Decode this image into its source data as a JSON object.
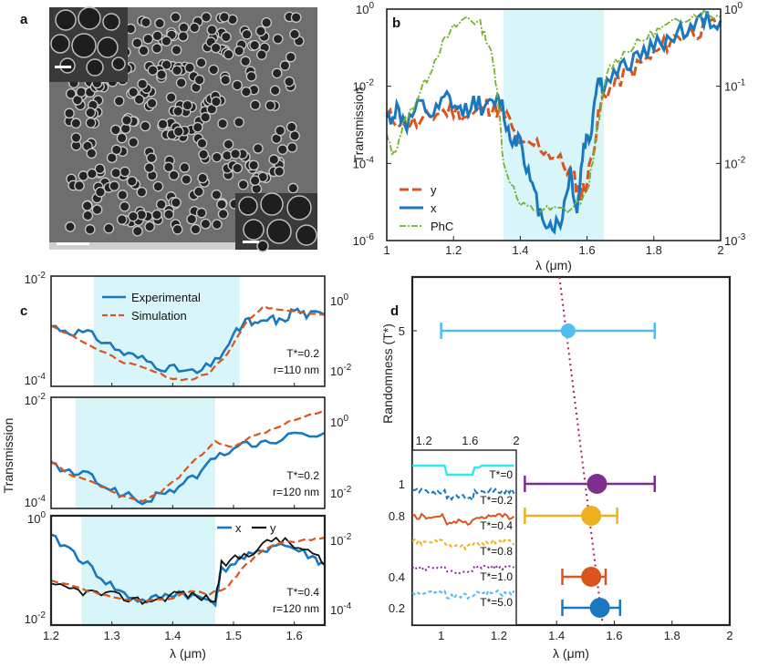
{
  "colors": {
    "blue": "#1878c0",
    "orange": "#d9541e",
    "green": "#78b02e",
    "cyan_band": "#d8f6fa",
    "purple": "#7e2f8e",
    "yellow": "#edb120",
    "lightblue": "#4dbeee",
    "cyan": "#2fe8f0",
    "sem_dark": "#2a2a2a",
    "sem_mid": "#9a9a9a"
  },
  "chart_data": [
    {
      "id": "a",
      "type": "image",
      "panel_label": "a",
      "description_hidden": true
    },
    {
      "id": "b",
      "type": "line",
      "panel_label": "b",
      "xlabel": "λ (μm)",
      "ylabel": "Transmission",
      "xlim": [
        1,
        2
      ],
      "xticks": [
        "1",
        "1.2",
        "1.4",
        "1.6",
        "1.8",
        "2"
      ],
      "yticks_left": [
        "10",
        "10",
        "10",
        "10"
      ],
      "yticks_left_exp": [
        "0",
        "-2",
        "-4",
        "-6"
      ],
      "yticks_right": [
        "10",
        "10",
        "10",
        "10"
      ],
      "yticks_right_exp": [
        "0",
        "-1",
        "-2",
        "-3"
      ],
      "band": [
        1.35,
        1.65
      ],
      "legend": [
        "y",
        "x",
        "PhC"
      ],
      "series": [
        {
          "name": "y",
          "x": [
            1.0,
            1.05,
            1.1,
            1.15,
            1.2,
            1.25,
            1.3,
            1.33,
            1.36,
            1.4,
            1.45,
            1.5,
            1.55,
            1.58,
            1.6,
            1.63,
            1.65,
            1.7,
            1.75,
            1.8,
            1.85,
            1.9,
            1.95,
            2.0
          ],
          "y": [
            -2.8,
            -2.9,
            -3.0,
            -2.7,
            -2.6,
            -2.8,
            -2.5,
            -2.6,
            -2.8,
            -3.6,
            -3.5,
            -3.8,
            -4.2,
            -4.8,
            -4.5,
            -3.0,
            -2.2,
            -1.8,
            -1.5,
            -1.2,
            -0.8,
            -0.6,
            -0.5,
            -0.4
          ]
        },
        {
          "name": "x",
          "x": [
            1.0,
            1.03,
            1.06,
            1.1,
            1.14,
            1.18,
            1.22,
            1.26,
            1.3,
            1.34,
            1.37,
            1.4,
            1.43,
            1.46,
            1.49,
            1.52,
            1.55,
            1.57,
            1.59,
            1.61,
            1.63,
            1.65,
            1.7,
            1.75,
            1.8,
            1.85,
            1.9,
            1.95,
            2.0
          ],
          "y": [
            -2.9,
            -2.6,
            -3.0,
            -2.5,
            -2.8,
            -2.3,
            -2.7,
            -2.4,
            -2.6,
            -2.3,
            -3.4,
            -3.3,
            -4.5,
            -5.3,
            -5.6,
            -5.6,
            -4.2,
            -5.3,
            -3.5,
            -3.3,
            -1.8,
            -2.0,
            -1.6,
            -1.2,
            -1.0,
            -0.7,
            -0.5,
            -0.3,
            -0.3
          ]
        },
        {
          "name": "PhC",
          "x": [
            1.0,
            1.02,
            1.05,
            1.08,
            1.12,
            1.16,
            1.2,
            1.24,
            1.28,
            1.31,
            1.33,
            1.35,
            1.4,
            1.45,
            1.5,
            1.55,
            1.6,
            1.63,
            1.66,
            1.7,
            1.75,
            1.8,
            1.85,
            1.9,
            1.95,
            2.0
          ],
          "y": [
            -3.3,
            -3.8,
            -3.0,
            -2.5,
            -1.8,
            -1.0,
            -0.5,
            -0.2,
            -0.4,
            -1.0,
            -2.0,
            -4.0,
            -5.1,
            -5.2,
            -5.2,
            -5.2,
            -4.8,
            -3.2,
            -1.6,
            -1.2,
            -0.9,
            -0.6,
            -0.4,
            -0.2,
            -0.1,
            -0.2
          ]
        }
      ]
    },
    {
      "id": "c",
      "type": "line",
      "panel_label": "c",
      "xlabel": "λ (μm)",
      "ylabel": "Transmission",
      "xlim": [
        1.2,
        1.65
      ],
      "xticks": [
        "1.2",
        "1.3",
        "1.4",
        "1.5",
        "1.6"
      ],
      "legend": [
        "Experimental",
        "Simulation"
      ],
      "legend2": [
        "x",
        "y"
      ],
      "subplots": [
        {
          "band": [
            1.27,
            1.51
          ],
          "annot1": "T*=0.2",
          "annot2": "r=110 nm",
          "yl_top": "10",
          "yl_top_exp": "-2",
          "yl_bot": "10",
          "yl_bot_exp": "-4",
          "yr_top": "10",
          "yr_top_exp": "0",
          "yr_bot": "10",
          "yr_bot_exp": "-2",
          "series": [
            {
              "name": "Experimental",
              "x": [
                1.2,
                1.23,
                1.26,
                1.29,
                1.32,
                1.35,
                1.38,
                1.41,
                1.44,
                1.47,
                1.5,
                1.52,
                1.54,
                1.56,
                1.58,
                1.6,
                1.62,
                1.65
              ],
              "y": [
                0.55,
                0.5,
                0.48,
                0.4,
                0.3,
                0.25,
                0.18,
                0.15,
                0.12,
                0.22,
                0.45,
                0.6,
                0.55,
                0.62,
                0.58,
                0.7,
                0.65,
                0.65
              ]
            },
            {
              "name": "Simulation",
              "x": [
                1.2,
                1.24,
                1.28,
                1.32,
                1.36,
                1.4,
                1.43,
                1.46,
                1.49,
                1.52,
                1.55,
                1.58,
                1.62,
                1.65
              ],
              "y": [
                0.55,
                0.45,
                0.32,
                0.22,
                0.15,
                0.07,
                0.06,
                0.12,
                0.3,
                0.58,
                0.72,
                0.7,
                0.67,
                0.65
              ]
            }
          ]
        },
        {
          "band": [
            1.24,
            1.47
          ],
          "annot1": "T*=0.2",
          "annot2": "r=120 nm",
          "yl_top": "10",
          "yl_top_exp": "-2",
          "yl_bot": "10",
          "yl_bot_exp": "-4",
          "yr_top": "10",
          "yr_top_exp": "0",
          "yr_bot": "10",
          "yr_bot_exp": "-2",
          "series": [
            {
              "name": "Experimental",
              "x": [
                1.2,
                1.23,
                1.26,
                1.29,
                1.32,
                1.35,
                1.38,
                1.41,
                1.44,
                1.47,
                1.5,
                1.53,
                1.56,
                1.6,
                1.65
              ],
              "y": [
                0.4,
                0.32,
                0.3,
                0.2,
                0.12,
                0.06,
                0.12,
                0.2,
                0.3,
                0.45,
                0.55,
                0.58,
                0.6,
                0.65,
                0.68
              ]
            },
            {
              "name": "Simulation",
              "x": [
                1.2,
                1.23,
                1.26,
                1.29,
                1.32,
                1.35,
                1.38,
                1.41,
                1.44,
                1.47,
                1.5,
                1.53,
                1.56,
                1.6,
                1.65
              ],
              "y": [
                0.42,
                0.3,
                0.25,
                0.18,
                0.1,
                0.06,
                0.15,
                0.28,
                0.45,
                0.6,
                0.55,
                0.65,
                0.7,
                0.8,
                0.88
              ]
            }
          ]
        },
        {
          "band": [
            1.25,
            1.47
          ],
          "annot1": "T*=0.4",
          "annot2": "r=120 nm",
          "yl_top": "10",
          "yl_top_exp": "0",
          "yl_bot": "10",
          "yl_bot_exp": "-2",
          "yr_top": "10",
          "yr_top_exp": "-2",
          "yr_bot": "10",
          "yr_bot_exp": "-4",
          "series": [
            {
              "name": "x",
              "x": [
                1.2,
                1.23,
                1.26,
                1.29,
                1.32,
                1.35,
                1.38,
                1.41,
                1.44,
                1.47,
                1.48,
                1.51,
                1.54,
                1.57,
                1.6,
                1.63,
                1.65
              ],
              "y": [
                0.8,
                0.7,
                0.55,
                0.4,
                0.28,
                0.22,
                0.25,
                0.3,
                0.25,
                0.22,
                0.5,
                0.6,
                0.65,
                0.75,
                0.7,
                0.62,
                0.55
              ]
            },
            {
              "name": "y",
              "x": [
                1.2,
                1.23,
                1.26,
                1.29,
                1.32,
                1.35,
                1.38,
                1.41,
                1.44,
                1.47,
                1.48,
                1.51,
                1.54,
                1.57,
                1.6,
                1.63,
                1.65
              ],
              "y": [
                0.35,
                0.33,
                0.3,
                0.28,
                0.25,
                0.22,
                0.24,
                0.3,
                0.26,
                0.23,
                0.55,
                0.62,
                0.7,
                0.8,
                0.72,
                0.65,
                0.55
              ]
            },
            {
              "name": "Simulation",
              "x": [
                1.2,
                1.24,
                1.28,
                1.32,
                1.36,
                1.4,
                1.43,
                1.46,
                1.49,
                1.52,
                1.55,
                1.58,
                1.62,
                1.65
              ],
              "y": [
                0.4,
                0.35,
                0.28,
                0.24,
                0.22,
                0.24,
                0.32,
                0.28,
                0.35,
                0.55,
                0.7,
                0.75,
                0.78,
                0.8
              ]
            }
          ]
        }
      ]
    },
    {
      "id": "d",
      "type": "scatter",
      "panel_label": "d",
      "xlabel": "λ (μm)",
      "ylabel": "Randomness (T*)",
      "xlim": [
        0.9,
        2.0
      ],
      "xticks": [
        "1",
        "1.2",
        "1.4",
        "1.6",
        "1.8",
        "2"
      ],
      "yticks": [
        "5",
        "1",
        "0.8",
        "0.4",
        "0.2"
      ],
      "points": [
        {
          "t": "5",
          "center": 1.44,
          "low": 1.0,
          "high": 1.74,
          "color": "lightblue"
        },
        {
          "t": "1",
          "center": 1.54,
          "low": 1.29,
          "high": 1.74,
          "color": "purple"
        },
        {
          "t": "0.8",
          "center": 1.52,
          "low": 1.29,
          "high": 1.61,
          "color": "yellow"
        },
        {
          "t": "0.4",
          "center": 1.52,
          "low": 1.42,
          "high": 1.57,
          "color": "orange"
        },
        {
          "t": "0.2",
          "center": 1.55,
          "low": 1.42,
          "high": 1.62,
          "color": "blue"
        }
      ],
      "inset": {
        "xticks": [
          "1.2",
          "1.6",
          "2"
        ],
        "labels": [
          "T*=0",
          "T*=0.2",
          "T*=0.4",
          "T*=0.8",
          "T*=1.0",
          "T*=5.0"
        ]
      }
    }
  ]
}
